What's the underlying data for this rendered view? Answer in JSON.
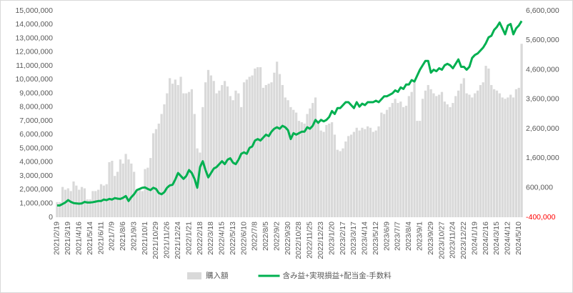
{
  "chart_data": {
    "type": "bar",
    "categories": [
      "2021/2/19",
      null,
      null,
      null,
      "2021/3/19",
      null,
      null,
      null,
      "2021/4/16",
      null,
      null,
      null,
      "2021/5/14",
      null,
      null,
      null,
      "2021/6/11",
      null,
      null,
      null,
      "2021/7/9",
      null,
      null,
      null,
      "2021/8/6",
      null,
      null,
      null,
      "2021/9/3",
      null,
      null,
      null,
      "2021/10/1",
      null,
      null,
      null,
      "2021/10/29",
      null,
      null,
      null,
      "2021/11/26",
      null,
      null,
      null,
      "2021/12/24",
      null,
      null,
      null,
      "2022/1/21",
      null,
      null,
      null,
      "2022/2/18",
      null,
      null,
      null,
      "2022/3/18",
      null,
      null,
      null,
      "2022/4/15",
      null,
      null,
      null,
      "2022/5/13",
      null,
      null,
      null,
      "2022/6/10",
      null,
      null,
      null,
      "2022/7/8",
      null,
      null,
      null,
      "2022/8/5",
      null,
      null,
      null,
      "2022/9/2",
      null,
      null,
      null,
      "2022/9/30",
      null,
      null,
      null,
      "2022/10/28",
      null,
      null,
      null,
      "2022/11/25",
      null,
      null,
      null,
      "2022/12/23",
      null,
      null,
      null,
      "2023/1/20",
      null,
      null,
      null,
      "2023/2/17",
      null,
      null,
      null,
      "2023/3/17",
      null,
      null,
      null,
      "2023/4/14",
      null,
      null,
      null,
      "2023/5/12",
      null,
      null,
      null,
      "2023/6/9",
      null,
      null,
      null,
      "2023/7/7",
      null,
      null,
      null,
      "2023/8/4",
      null,
      null,
      null,
      "2023/9/1",
      null,
      null,
      null,
      "2023/9/29",
      null,
      null,
      null,
      "2023/10/27",
      null,
      null,
      null,
      "2023/11/24",
      null,
      null,
      null,
      "2023/12/22",
      null,
      null,
      null,
      "2024/1/19",
      null,
      null,
      null,
      "2024/2/16",
      null,
      null,
      null,
      "2024/3/15",
      null,
      null,
      null,
      "2024/4/12",
      null,
      null,
      null,
      "2024/5/10",
      null
    ],
    "series": [
      {
        "name": "購入額",
        "type": "bar",
        "color": "#d9d9d9",
        "values": [
          1100000,
          1100000,
          2200000,
          2000000,
          2100000,
          1900000,
          2600000,
          2300000,
          2000000,
          2200000,
          2100000,
          1300000,
          1300000,
          1900000,
          1900000,
          2000000,
          2400000,
          2300000,
          2400000,
          4000000,
          4100000,
          3000000,
          3300000,
          4200000,
          3900000,
          4600000,
          4200000,
          3900000,
          3300000,
          2000000,
          2000000,
          1900000,
          3500000,
          3600000,
          4300000,
          6100000,
          6400000,
          6800000,
          7500000,
          8200000,
          9000000,
          10100000,
          9700000,
          10000000,
          9600000,
          10200000,
          9000000,
          9000000,
          9100000,
          9300000,
          7500000,
          5000000,
          4700000,
          8000000,
          9800000,
          10700000,
          10300000,
          9900000,
          9000000,
          9200000,
          9600000,
          9900000,
          9500000,
          8800000,
          8500000,
          9200000,
          9000000,
          8000000,
          9800000,
          10000000,
          10200000,
          10300000,
          10800000,
          10900000,
          10900000,
          9400000,
          9600000,
          9700000,
          9800000,
          10500000,
          11300000,
          10400000,
          9600000,
          8700000,
          8500000,
          8000000,
          7800000,
          7600000,
          7000000,
          6900000,
          6800000,
          7500000,
          7900000,
          8300000,
          8700000,
          7000000,
          6300000,
          6200000,
          6700000,
          6800000,
          6900000,
          6000000,
          4900000,
          4800000,
          5000000,
          5500000,
          5900000,
          6000000,
          6200000,
          6500000,
          6300000,
          6500000,
          6400000,
          6600000,
          6500000,
          6200000,
          6300000,
          6600000,
          7600000,
          7500000,
          7800000,
          8000000,
          8300000,
          8600000,
          8300000,
          8400000,
          8000000,
          8100000,
          8800000,
          9100000,
          9800000,
          7000000,
          7000000,
          8600000,
          9200000,
          9600000,
          9300000,
          9000000,
          8800000,
          8900000,
          9100000,
          8400000,
          8200000,
          8000000,
          8300000,
          8800000,
          9200000,
          9700000,
          10100000,
          9000000,
          8900000,
          8700000,
          9000000,
          9200000,
          9600000,
          9800000,
          11000000,
          10800000,
          9600000,
          9300000,
          9200000,
          9000000,
          8700000,
          8600000,
          8700000,
          8900000,
          8700000,
          9300000,
          9400000,
          12600000
        ]
      },
      {
        "name": "含み益+実現損益+配当金-手数料",
        "type": "line",
        "axis": "y2",
        "color": "#00b050",
        "values": [
          0,
          0,
          50000,
          100000,
          180000,
          120000,
          80000,
          70000,
          60000,
          70000,
          120000,
          100000,
          100000,
          110000,
          130000,
          150000,
          150000,
          200000,
          180000,
          220000,
          200000,
          250000,
          230000,
          220000,
          260000,
          320000,
          150000,
          280000,
          380000,
          520000,
          560000,
          600000,
          610000,
          560000,
          520000,
          600000,
          560000,
          420000,
          380000,
          450000,
          600000,
          680000,
          700000,
          880000,
          1100000,
          1000000,
          900000,
          1000000,
          1200000,
          1100000,
          900000,
          600000,
          1300000,
          1500000,
          1200000,
          950000,
          1100000,
          1250000,
          1300000,
          1400000,
          1500000,
          1400000,
          1550000,
          1600000,
          1450000,
          1400000,
          1550000,
          1750000,
          1800000,
          1750000,
          1950000,
          2000000,
          2200000,
          2250000,
          2200000,
          2300000,
          2400000,
          2350000,
          2500000,
          2600000,
          2650000,
          2600000,
          2700000,
          2650000,
          2550000,
          2250000,
          2450000,
          2400000,
          2450000,
          2500000,
          2500000,
          2650000,
          2600000,
          2700000,
          2900000,
          2800000,
          2900000,
          2850000,
          2900000,
          3000000,
          3200000,
          3100000,
          3300000,
          3300000,
          3400000,
          3500000,
          3500000,
          3400000,
          3300000,
          3500000,
          3350000,
          3450000,
          3400000,
          3500000,
          3500000,
          3500000,
          3550000,
          3500000,
          3600000,
          3700000,
          3700000,
          3750000,
          3800000,
          3900000,
          3850000,
          4000000,
          3950000,
          4100000,
          4100000,
          4250000,
          4200000,
          4400000,
          4600000,
          4750000,
          4900000,
          4900000,
          4500000,
          4600000,
          4550000,
          4650000,
          4600000,
          4750000,
          4800000,
          4750000,
          4650000,
          4800000,
          4950000,
          4700000,
          4700000,
          4600000,
          4700000,
          5000000,
          5100000,
          5150000,
          5250000,
          5350000,
          5500000,
          5700000,
          5750000,
          5950000,
          6050000,
          6200000,
          6000000,
          5800000,
          6100000,
          6150000,
          5800000,
          6000000,
          6100000,
          6250000
        ]
      }
    ],
    "ylim": [
      0,
      15000000
    ],
    "yticks": [
      0,
      {
        "value": 1000000,
        "label": "1,000,000"
      },
      {
        "value": 2000000,
        "label": "2,000,000"
      },
      {
        "value": 3000000,
        "label": "3,000,000"
      },
      {
        "value": 4000000,
        "label": "4,000,000"
      },
      {
        "value": 5000000,
        "label": "5,000,000"
      },
      {
        "value": 6000000,
        "label": "6,000,000"
      },
      {
        "value": 7000000,
        "label": "7,000,000"
      },
      {
        "value": 8000000,
        "label": "8,000,000"
      },
      {
        "value": 9000000,
        "label": "9,000,000"
      },
      {
        "value": 10000000,
        "label": "10,000,000"
      },
      {
        "value": 11000000,
        "label": "11,000,000"
      },
      {
        "value": 12000000,
        "label": "12,000,000"
      },
      {
        "value": 13000000,
        "label": "13,000,000"
      },
      {
        "value": 14000000,
        "label": "14,000,000"
      },
      {
        "value": 15000000,
        "label": "15,000,000"
      }
    ],
    "y2lim": [
      -400000,
      6600000
    ],
    "y2ticks": [
      {
        "value": -400000,
        "label": "-400,000"
      },
      {
        "value": 600000,
        "label": "600,000"
      },
      {
        "value": 1600000,
        "label": "1,600,000"
      },
      {
        "value": 2600000,
        "label": "2,600,000"
      },
      {
        "value": 3600000,
        "label": "3,600,000"
      },
      {
        "value": 4600000,
        "label": "4,600,000"
      },
      {
        "value": 5600000,
        "label": "5,600,000"
      },
      {
        "value": 6600000,
        "label": "6,600,000"
      }
    ],
    "y2_negative_color": "#ff0000",
    "legend": "bottom"
  }
}
